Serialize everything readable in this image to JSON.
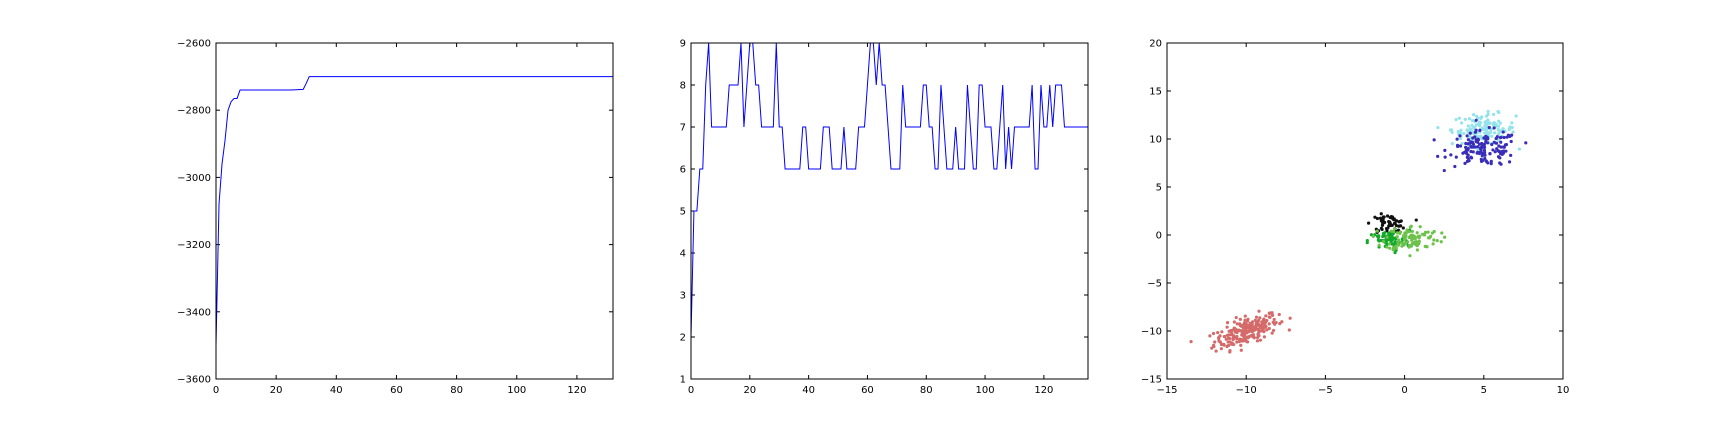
{
  "chart_data": [
    {
      "type": "line",
      "title": "",
      "xlabel": "",
      "ylabel": "",
      "xlim": [
        0,
        132
      ],
      "ylim": [
        -3600,
        -2600
      ],
      "xticks": [
        0,
        20,
        40,
        60,
        80,
        100,
        120
      ],
      "yticks": [
        -3600,
        -3400,
        -3200,
        -3000,
        -2800,
        -2600
      ],
      "grid": false,
      "series": [
        {
          "color": "#0000ff",
          "x": [
            0,
            1,
            2,
            3,
            4,
            5,
            6,
            7,
            8,
            9,
            10,
            15,
            20,
            25,
            29,
            30,
            31,
            40,
            60,
            80,
            100,
            120,
            132
          ],
          "y": [
            -3500,
            -3080,
            -2960,
            -2890,
            -2800,
            -2775,
            -2765,
            -2765,
            -2740,
            -2740,
            -2740,
            -2740,
            -2740,
            -2740,
            -2738,
            -2720,
            -2700,
            -2700,
            -2700,
            -2700,
            -2700,
            -2700,
            -2700
          ]
        }
      ]
    },
    {
      "type": "line",
      "title": "",
      "xlabel": "",
      "ylabel": "",
      "xlim": [
        0,
        135
      ],
      "ylim": [
        1,
        9
      ],
      "xticks": [
        0,
        20,
        40,
        60,
        80,
        100,
        120
      ],
      "yticks": [
        1,
        2,
        3,
        4,
        5,
        6,
        7,
        8,
        9
      ],
      "grid": false,
      "series": [
        {
          "color": "#0000ff",
          "x": [
            0,
            1,
            2,
            3,
            4,
            5,
            6,
            7,
            8,
            9,
            10,
            11,
            12,
            13,
            14,
            15,
            16,
            17,
            18,
            19,
            20,
            21,
            22,
            23,
            24,
            25,
            26,
            27,
            28,
            29,
            30,
            31,
            32,
            33,
            34,
            35,
            36,
            37,
            38,
            39,
            40,
            41,
            42,
            43,
            44,
            45,
            46,
            47,
            48,
            49,
            50,
            51,
            52,
            53,
            54,
            55,
            56,
            57,
            58,
            59,
            60,
            61,
            62,
            63,
            64,
            65,
            66,
            67,
            68,
            69,
            70,
            71,
            72,
            73,
            74,
            75,
            76,
            77,
            78,
            79,
            80,
            81,
            82,
            83,
            84,
            85,
            86,
            87,
            88,
            89,
            90,
            91,
            92,
            93,
            94,
            95,
            96,
            97,
            98,
            99,
            100,
            101,
            102,
            103,
            104,
            105,
            106,
            107,
            108,
            109,
            110,
            111,
            112,
            113,
            114,
            115,
            116,
            117,
            118,
            119,
            120,
            121,
            122,
            123,
            124,
            125,
            126,
            127,
            128,
            129,
            130,
            131,
            132,
            133,
            134,
            135
          ],
          "y": [
            2,
            5,
            5,
            6,
            6,
            8,
            9,
            7,
            7,
            7,
            7,
            7,
            7,
            8,
            8,
            8,
            8,
            9,
            7,
            8,
            9,
            9,
            8,
            8,
            7,
            7,
            7,
            7,
            7,
            9,
            7,
            7,
            6,
            6,
            6,
            6,
            6,
            6,
            7,
            7,
            6,
            6,
            6,
            6,
            6,
            7,
            7,
            7,
            6,
            6,
            6,
            6,
            7,
            6,
            6,
            6,
            6,
            7,
            7,
            7,
            8,
            9,
            9,
            8,
            9,
            8,
            8,
            7,
            6,
            6,
            6,
            6,
            8,
            7,
            7,
            7,
            7,
            7,
            7,
            8,
            8,
            7,
            7,
            6,
            6,
            8,
            7,
            6,
            6,
            6,
            7,
            6,
            6,
            6,
            8,
            7,
            6,
            6,
            8,
            8,
            7,
            7,
            7,
            6,
            6,
            7,
            8,
            6,
            7,
            6,
            7,
            7,
            7,
            7,
            7,
            7,
            8,
            6,
            6,
            8,
            7,
            7,
            8,
            7,
            8,
            8,
            8,
            7,
            7,
            7,
            7,
            7,
            7,
            7,
            7,
            7
          ]
        }
      ]
    },
    {
      "type": "scatter",
      "title": "",
      "xlabel": "",
      "ylabel": "",
      "xlim": [
        -15,
        10
      ],
      "ylim": [
        -15,
        20
      ],
      "xticks": [
        -15,
        -10,
        -5,
        0,
        5,
        10
      ],
      "yticks": [
        -15,
        -10,
        -5,
        0,
        5,
        10,
        15,
        20
      ],
      "grid": false,
      "clusters": [
        {
          "color": "#d46a6a",
          "center": [
            -10,
            -10
          ],
          "spread": [
            1.0,
            0.7
          ],
          "tilt": 0.55,
          "count": 230
        },
        {
          "color": "#93e3ec",
          "center": [
            5,
            11
          ],
          "spread": [
            1.0,
            0.8
          ],
          "tilt": 0.0,
          "count": 130
        },
        {
          "color": "#3a2db8",
          "center": [
            5,
            9
          ],
          "spread": [
            1.1,
            0.9
          ],
          "tilt": 0.0,
          "count": 140
        },
        {
          "color": "#111111",
          "center": [
            -1,
            1.2
          ],
          "spread": [
            0.55,
            0.45
          ],
          "tilt": 0.0,
          "count": 60
        },
        {
          "color": "#12a82a",
          "center": [
            -1,
            -0.6
          ],
          "spread": [
            0.65,
            0.55
          ],
          "tilt": 0.0,
          "count": 70
        },
        {
          "color": "#6cc24a",
          "center": [
            0.5,
            -0.3
          ],
          "spread": [
            0.85,
            0.65
          ],
          "tilt": 0.0,
          "count": 100
        }
      ]
    }
  ]
}
